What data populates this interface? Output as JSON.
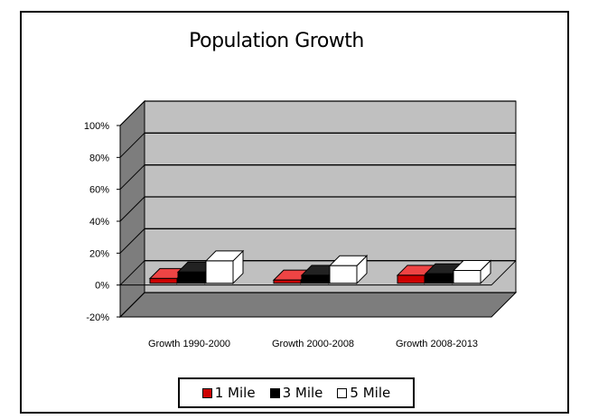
{
  "chart_data": {
    "type": "bar",
    "title": "Population Growth",
    "categories": [
      "Growth 1990-2000",
      "Growth 2000-2008",
      "Growth 2008-2013"
    ],
    "series": [
      {
        "name": "1 Mile",
        "color": "#cc0000",
        "values": [
          3,
          2,
          5
        ]
      },
      {
        "name": "3 Mile",
        "color": "#000000",
        "values": [
          7,
          5,
          6
        ]
      },
      {
        "name": "5 Mile",
        "color": "#ffffff",
        "values": [
          14,
          11,
          8
        ]
      }
    ],
    "ylim": [
      -20,
      100
    ],
    "yticks": [
      "100%",
      "80%",
      "60%",
      "40%",
      "20%",
      "0%",
      "-20%"
    ],
    "ytick_values": [
      100,
      80,
      60,
      40,
      20,
      0,
      -20
    ],
    "grid": true,
    "three_d": true,
    "legend_position": "bottom"
  }
}
